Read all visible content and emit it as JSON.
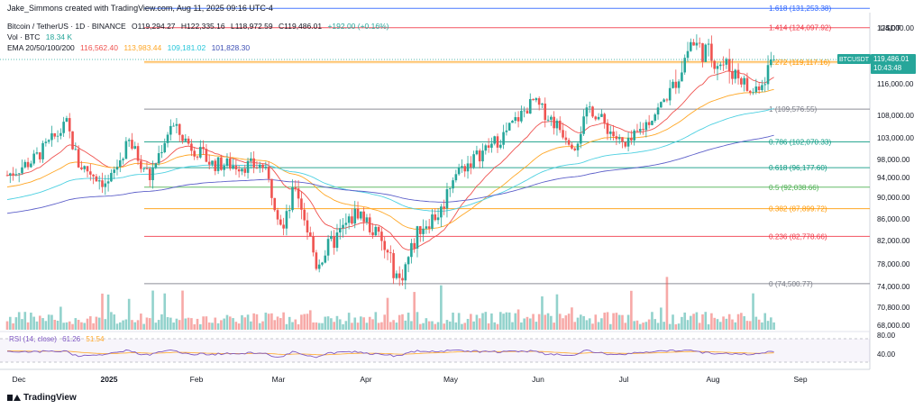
{
  "header": {
    "attribution": "Jake_Simmons created with TradingView.com, Aug 11, 2025 09:16 UTC-4",
    "symbol_line": "Bitcoin / TetherUS · 1D · BINANCE",
    "ohlc_o": "O119,294.27",
    "ohlc_h": "H122,335.16",
    "ohlc_l": "L118,972.59",
    "ohlc_c": "C119,486.01",
    "ohlc_change": "+192.00 (+0.16%)",
    "vol_label": "Vol · BTC",
    "vol_value": "18.34 K",
    "ema_label": "EMA 20/50/100/200",
    "ema_values": [
      "116,562.40",
      "113,983.44",
      "109,181.02",
      "101,828.30"
    ]
  },
  "price_axis": {
    "unit": "USDT",
    "ticks": [
      "124,000.00",
      "116,000.00",
      "108,000.00",
      "103,000.00",
      "98,000.00",
      "94,000.00",
      "90,000.00",
      "86,000.00",
      "82,000.00",
      "78,000.00",
      "74,000.00",
      "70,800.00",
      "68,000.00"
    ],
    "last_price_symbol": "BTCUSDT",
    "last_price": "119,486.01",
    "countdown": "10:43:48"
  },
  "rsi": {
    "label": "RSI (14, close)",
    "value": "61.26",
    "value2": "51.54",
    "ticks": [
      "80.00",
      "40.00"
    ]
  },
  "time_axis": [
    "Dec",
    "2025",
    "Feb",
    "Mar",
    "Apr",
    "May",
    "Jun",
    "Jul",
    "Aug",
    "Sep"
  ],
  "brand": "TradingView",
  "colors": {
    "up": "#26a69a",
    "down": "#ef5350",
    "ema20": "#ef5350",
    "ema50": "#ffa726",
    "ema100": "#4dd0e1",
    "ema200": "#5c5fc9",
    "last_price_bg": "#26a69a"
  },
  "chart_data": {
    "type": "candlestick",
    "symbol": "Bitcoin / TetherUS",
    "interval": "1D",
    "exchange": "BINANCE",
    "indicators": [
      "EMA 20",
      "EMA 50",
      "EMA 100",
      "EMA 200",
      "Volume",
      "RSI (14, close)"
    ],
    "fibonacci": [
      {
        "level": "1.618",
        "price": 131253.38,
        "label": "1.618 (131,253.38)",
        "color": "#2962ff"
      },
      {
        "level": "1.414",
        "price": 124097.92,
        "label": "1.414 (124,097.92)",
        "color": "#f23645"
      },
      {
        "level": "1.272",
        "price": 119117.16,
        "label": "1.272 (119,117.16)",
        "color": "#ff9800"
      },
      {
        "level": "1",
        "price": 109576.55,
        "label": "1 (109,576.55)",
        "color": "#787b86"
      },
      {
        "level": "0.786",
        "price": 102070.33,
        "label": "0.786 (102,070.33)",
        "color": "#089981"
      },
      {
        "level": "0.618",
        "price": 96177.6,
        "label": "0.618 (96,177.60)",
        "color": "#089981"
      },
      {
        "level": "0.5",
        "price": 92038.66,
        "label": "0.5 (92,038.66)",
        "color": "#4caf50"
      },
      {
        "level": "0.382",
        "price": 87899.72,
        "label": "0.382 (87,899.72)",
        "color": "#ff9800"
      },
      {
        "level": "0.236",
        "price": 82778.66,
        "label": "0.236 (82,778.66)",
        "color": "#f23645"
      },
      {
        "level": "0",
        "price": 74500.77,
        "label": "0 (74,500.77)",
        "color": "#787b86"
      }
    ],
    "close_path": [
      [
        "2024-11-26",
        94500
      ],
      [
        "2024-12-05",
        98000
      ],
      [
        "2024-12-16",
        106000
      ],
      [
        "2024-12-20",
        97000
      ],
      [
        "2024-12-30",
        92500
      ],
      [
        "2025-01-06",
        102000
      ],
      [
        "2025-01-13",
        94000
      ],
      [
        "2025-01-20",
        106000
      ],
      [
        "2025-01-27",
        101000
      ],
      [
        "2025-02-03",
        97000
      ],
      [
        "2025-02-20",
        96500
      ],
      [
        "2025-02-27",
        84000
      ],
      [
        "2025-03-03",
        92500
      ],
      [
        "2025-03-10",
        78000
      ],
      [
        "2025-03-24",
        87500
      ],
      [
        "2025-03-31",
        82500
      ],
      [
        "2025-04-07",
        75000
      ],
      [
        "2025-04-14",
        84500
      ],
      [
        "2025-04-21",
        87500
      ],
      [
        "2025-04-25",
        94500
      ],
      [
        "2025-05-12",
        103500
      ],
      [
        "2025-05-22",
        111500
      ],
      [
        "2025-06-05",
        101500
      ],
      [
        "2025-06-10",
        110000
      ],
      [
        "2025-06-22",
        100500
      ],
      [
        "2025-07-03",
        109500
      ],
      [
        "2025-07-14",
        122000
      ],
      [
        "2025-07-31",
        117000
      ],
      [
        "2025-08-03",
        113500
      ],
      [
        "2025-08-11",
        119486
      ]
    ],
    "ema": [
      {
        "name": "EMA 20",
        "last": 116562.4
      },
      {
        "name": "EMA 50",
        "last": 113983.44
      },
      {
        "name": "EMA 100",
        "last": 109181.02
      },
      {
        "name": "EMA 200",
        "last": 101828.3
      }
    ],
    "last_price": 119486.01,
    "volume_last": "18.34 K",
    "rsi_last": 61.26
  }
}
